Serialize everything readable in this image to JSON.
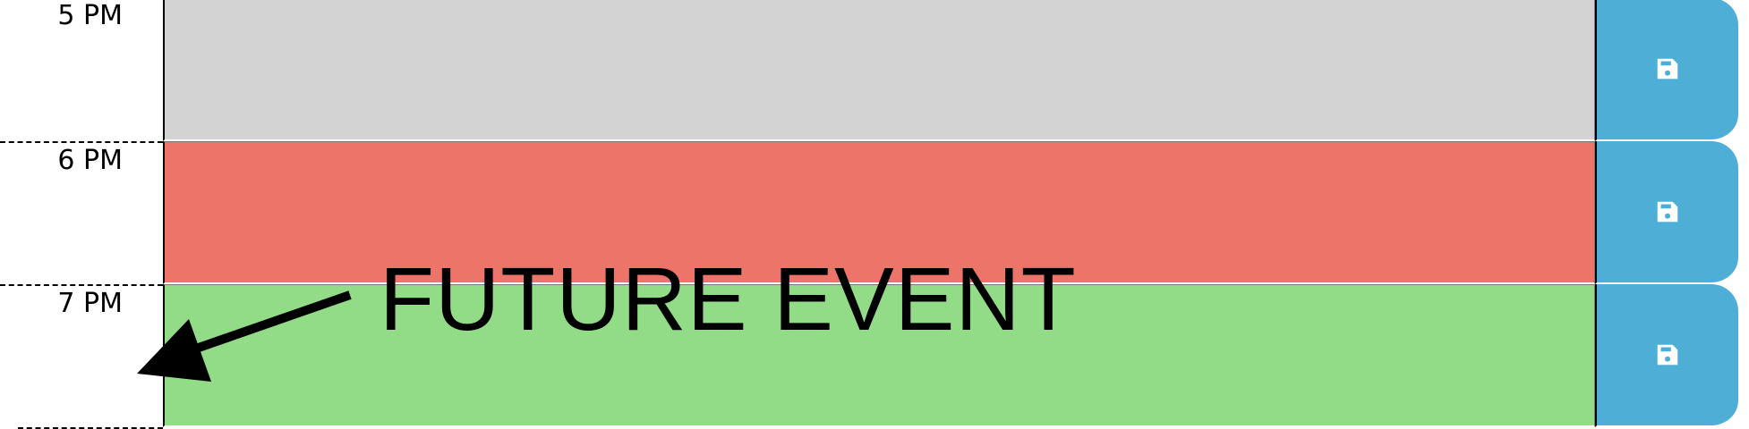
{
  "time_blocks": [
    {
      "hour": "5 PM",
      "status": "past",
      "event_text": "",
      "color": "#d3d3d3",
      "save_icon": "save-icon"
    },
    {
      "hour": "6 PM",
      "status": "present",
      "event_text": "",
      "color": "#ed7468",
      "save_icon": "save-icon"
    },
    {
      "hour": "7 PM",
      "status": "future",
      "event_text": "",
      "color": "#92dc87",
      "save_icon": "save-icon"
    }
  ],
  "annotation": {
    "label": "FUTURE EVENT",
    "arrow_icon": "arrow-icon"
  },
  "colors": {
    "save_button": "#4eaed6",
    "save_icon": "#ffffff"
  }
}
